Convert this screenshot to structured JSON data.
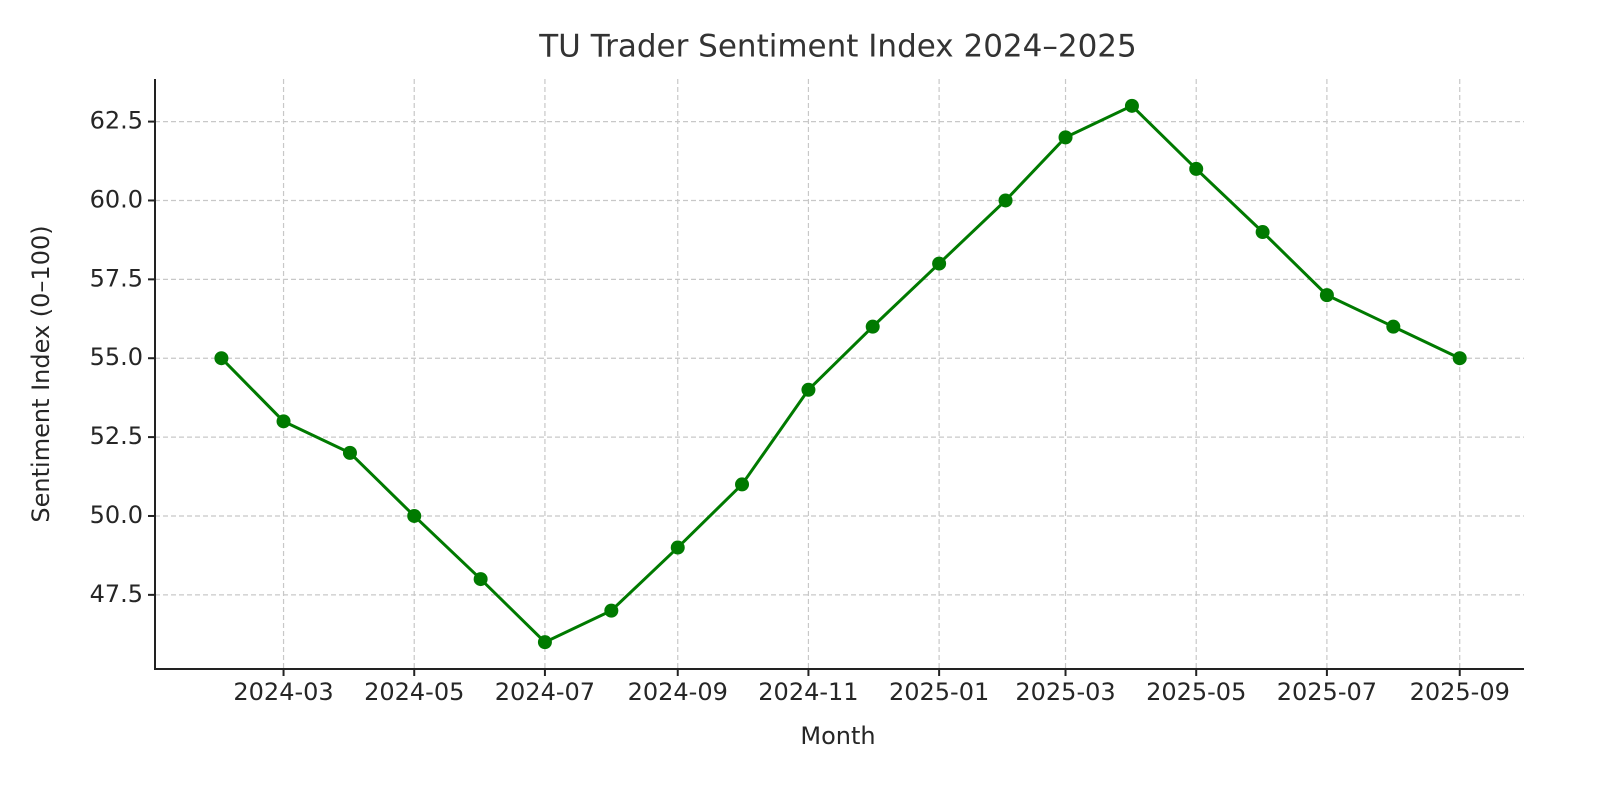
{
  "chart_data": {
    "type": "line",
    "title": "TU Trader Sentiment Index 2024–2025",
    "xlabel": "Month",
    "ylabel": "Sentiment Index (0–100)",
    "x": [
      "2024-02",
      "2024-03",
      "2024-04",
      "2024-05",
      "2024-06",
      "2024-07",
      "2024-08",
      "2024-09",
      "2024-10",
      "2024-11",
      "2024-12",
      "2025-01",
      "2025-02",
      "2025-03",
      "2025-04",
      "2025-05",
      "2025-06",
      "2025-07",
      "2025-08",
      "2025-09"
    ],
    "series": [
      {
        "name": "Sentiment Index",
        "color": "#007a00",
        "values": [
          55,
          53,
          52,
          50,
          48,
          46,
          47,
          49,
          51,
          54,
          56,
          58,
          60,
          62,
          63,
          61,
          59,
          57,
          56,
          55
        ]
      }
    ],
    "xlim": [
      "2024-01",
      "2025-10"
    ],
    "xticks": [
      "2024-03",
      "2024-05",
      "2024-07",
      "2024-09",
      "2024-11",
      "2025-01",
      "2025-03",
      "2025-05",
      "2025-07",
      "2025-09"
    ],
    "ylim": [
      45.15,
      63.85
    ],
    "yticks": [
      47.5,
      {
        "value": 50,
        "label": "50.0"
      },
      52.5,
      {
        "value": 55,
        "label": "55.0"
      },
      57.5,
      {
        "value": 60,
        "label": "60.0"
      },
      62.5
    ],
    "grid": true
  }
}
